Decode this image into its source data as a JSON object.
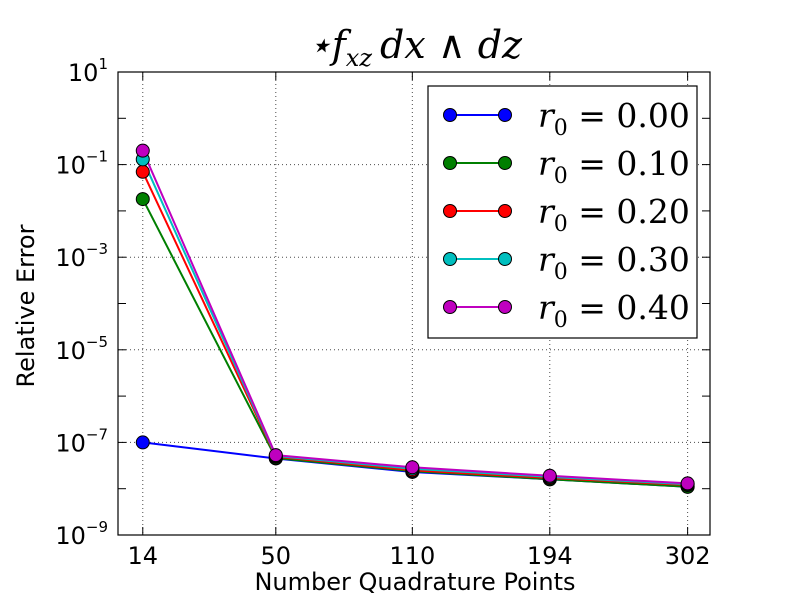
{
  "chart_data": {
    "type": "line",
    "title": "⋆f_xz dx ∧ dz",
    "title_parts": {
      "star": "⋆",
      "f": "f",
      "sub": "xz",
      "rest": "dx ∧ dz"
    },
    "xlabel": "Number Quadrature Points",
    "ylabel": "Relative Error",
    "x_scale": "categorical-by-sqrt",
    "yscale": "log",
    "ylim": [
      1e-09,
      10
    ],
    "grid": true,
    "legend_position": "top-right",
    "x": [
      14,
      50,
      110,
      194,
      302
    ],
    "x_tick_labels": [
      "14",
      "50",
      "110",
      "194",
      "302"
    ],
    "y_ticks": [
      {
        "value": 1e-09,
        "base": "10",
        "exp": "−9"
      },
      {
        "value": 1e-07,
        "base": "10",
        "exp": "−7"
      },
      {
        "value": 1e-05,
        "base": "10",
        "exp": "−5"
      },
      {
        "value": 0.001,
        "base": "10",
        "exp": "−3"
      },
      {
        "value": 0.1,
        "base": "10",
        "exp": "−1"
      },
      {
        "value": 10,
        "base": "10",
        "exp": "1"
      }
    ],
    "series": [
      {
        "name": "r₀ = 0.00",
        "r_label": "r",
        "r_sub": "0",
        "value_label": "= 0.00",
        "color": "#0000ff",
        "values": [
          1e-07,
          4.5e-08,
          2.3e-08,
          1.6e-08,
          1.1e-08
        ]
      },
      {
        "name": "r₀ = 0.10",
        "r_label": "r",
        "r_sub": "0",
        "value_label": "= 0.10",
        "color": "#007f00",
        "values": [
          0.018,
          4.6e-08,
          2.4e-08,
          1.6e-08,
          1.1e-08
        ]
      },
      {
        "name": "r₀ = 0.20",
        "r_label": "r",
        "r_sub": "0",
        "value_label": "= 0.20",
        "color": "#ff0000",
        "values": [
          0.07,
          4.9e-08,
          2.5e-08,
          1.7e-08,
          1.2e-08
        ]
      },
      {
        "name": "r₀ = 0.30",
        "r_label": "r",
        "r_sub": "0",
        "value_label": "= 0.30",
        "color": "#00bfbf",
        "values": [
          0.13,
          5.1e-08,
          2.7e-08,
          1.8e-08,
          1.25e-08
        ]
      },
      {
        "name": "r₀ = 0.40",
        "r_label": "r",
        "r_sub": "0",
        "value_label": "= 0.40",
        "color": "#bf00bf",
        "values": [
          0.2,
          5.3e-08,
          2.9e-08,
          1.9e-08,
          1.3e-08
        ]
      }
    ]
  }
}
